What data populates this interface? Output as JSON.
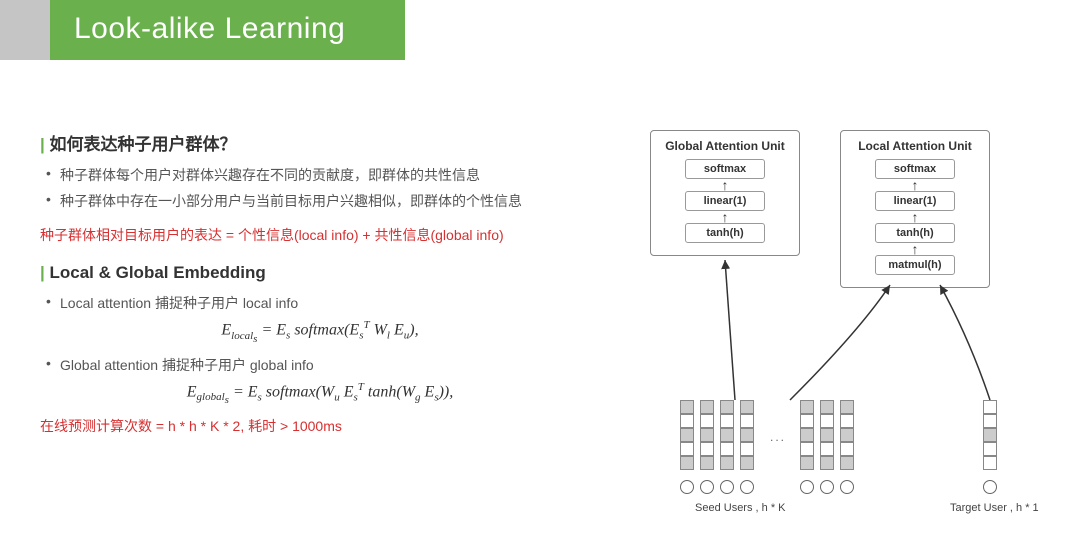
{
  "title": "Look-alike Learning",
  "section1": {
    "heading": "如何表达种子用户群体？",
    "bullets": [
      "种子群体每个用户对群体兴趣存在不同的贡献度，即群体的共性信息",
      "种子群体中存在一小部分用户与当前目标用户兴趣相似，即群体的个性信息"
    ],
    "red_summary": "种子群体相对目标用户的表达 = 个性信息(local info) + 共性信息(global info)"
  },
  "section2": {
    "heading": "Local & Global Embedding",
    "bullets": [
      "Local attention 捕捉种子用户 local info",
      "Global attention 捕捉种子用户 global info"
    ],
    "formula1_html": "E<sub>local<sub>s</sub></sub> = E<sub>s</sub> softmax(E<sub>s</sub><sup>T</sup> W<sub>l</sub> E<sub>u</sub>),",
    "formula2_html": "E<sub>global<sub>s</sub></sub> = E<sub>s</sub> softmax(W<sub>u</sub> E<sub>s</sub><sup>T</sup> tanh(W<sub>g</sub> E<sub>s</sub>)),"
  },
  "red_bottom": "在线预测计算次数 = h * h * K * 2, 耗时 > 1000ms",
  "diagram": {
    "global_unit": {
      "title": "Global Attention Unit",
      "layers": [
        "softmax",
        "linear(1)",
        "tanh(h)"
      ]
    },
    "local_unit": {
      "title": "Local Attention Unit",
      "layers": [
        "softmax",
        "linear(1)",
        "tanh(h)",
        "matmul(h)"
      ]
    },
    "seed_caption": "Seed Users , h * K",
    "target_caption": "Target User , h * 1",
    "strip_pattern": [
      "g",
      "w",
      "g",
      "w",
      "g"
    ],
    "target_pattern": [
      "w",
      "w",
      "g",
      "w",
      "w"
    ],
    "colors": {
      "cell_gray": "#cccccc",
      "cell_white": "#ffffff",
      "border": "#888888",
      "arrow": "#333333"
    }
  }
}
